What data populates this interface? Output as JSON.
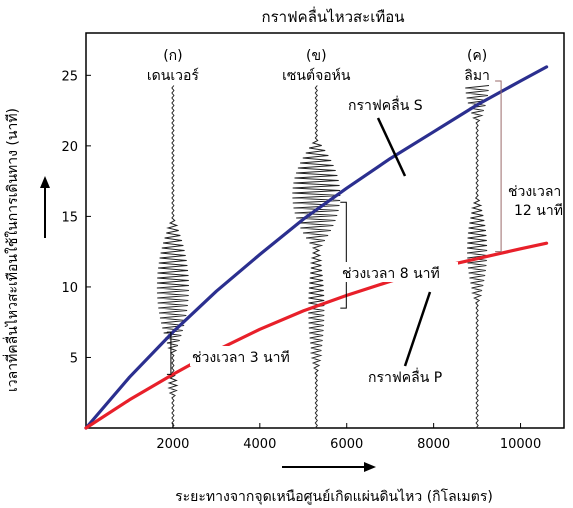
{
  "chart_data": {
    "type": "line",
    "title": "กราฟคลื่นไหวสะเทือน",
    "xlabel": "ระยะทางจากจุดเหนือศูนย์เกิดแผ่นดินไหว (กิโลเมตร)",
    "ylabel": "เวลาที่คลื่นไหวสะเทือนใช้ในการเดินทาง (นาที)",
    "xlim": [
      0,
      11000
    ],
    "ylim": [
      0,
      28
    ],
    "x_ticks": [
      2000,
      4000,
      6000,
      8000,
      10000
    ],
    "y_ticks": [
      5,
      10,
      15,
      20,
      25
    ],
    "grid": false,
    "series": [
      {
        "name": "กราฟคลื่น S",
        "color": "#2b2f8f",
        "x": [
          0,
          1000,
          2000,
          3000,
          4000,
          5000,
          6000,
          7000,
          8000,
          9000,
          10000,
          10600
        ],
        "y": [
          0,
          3.6,
          6.8,
          9.7,
          12.3,
          14.8,
          17.0,
          19.1,
          21.0,
          22.9,
          24.6,
          25.6
        ]
      },
      {
        "name": "กราฟคลื่น P",
        "color": "#e8202a",
        "x": [
          0,
          1000,
          2000,
          3000,
          4000,
          5000,
          6000,
          7000,
          8000,
          9000,
          10000,
          10600
        ],
        "y": [
          0,
          2.0,
          3.8,
          5.5,
          7.0,
          8.3,
          9.4,
          10.4,
          11.3,
          12.0,
          12.7,
          13.1
        ]
      }
    ],
    "seismographs": [
      {
        "station_letter": "(ก)",
        "station": "เดนเวอร์",
        "distance": 2000
      },
      {
        "station_letter": "(ข)",
        "station": "เซนต์จอห์น",
        "distance": 5300
      },
      {
        "station_letter": "(ค)",
        "station": "ลิมา",
        "distance": 9000
      }
    ],
    "annotations": [
      {
        "text": "กราฟคลื่น S"
      },
      {
        "text": "กราฟคลื่น P"
      },
      {
        "text": "ช่วงเวลา 3 นาที"
      },
      {
        "text": "ช่วงเวลา 8 นาที"
      },
      {
        "text": "ช่วงเวลา",
        "text2": "12 นาที"
      }
    ]
  }
}
